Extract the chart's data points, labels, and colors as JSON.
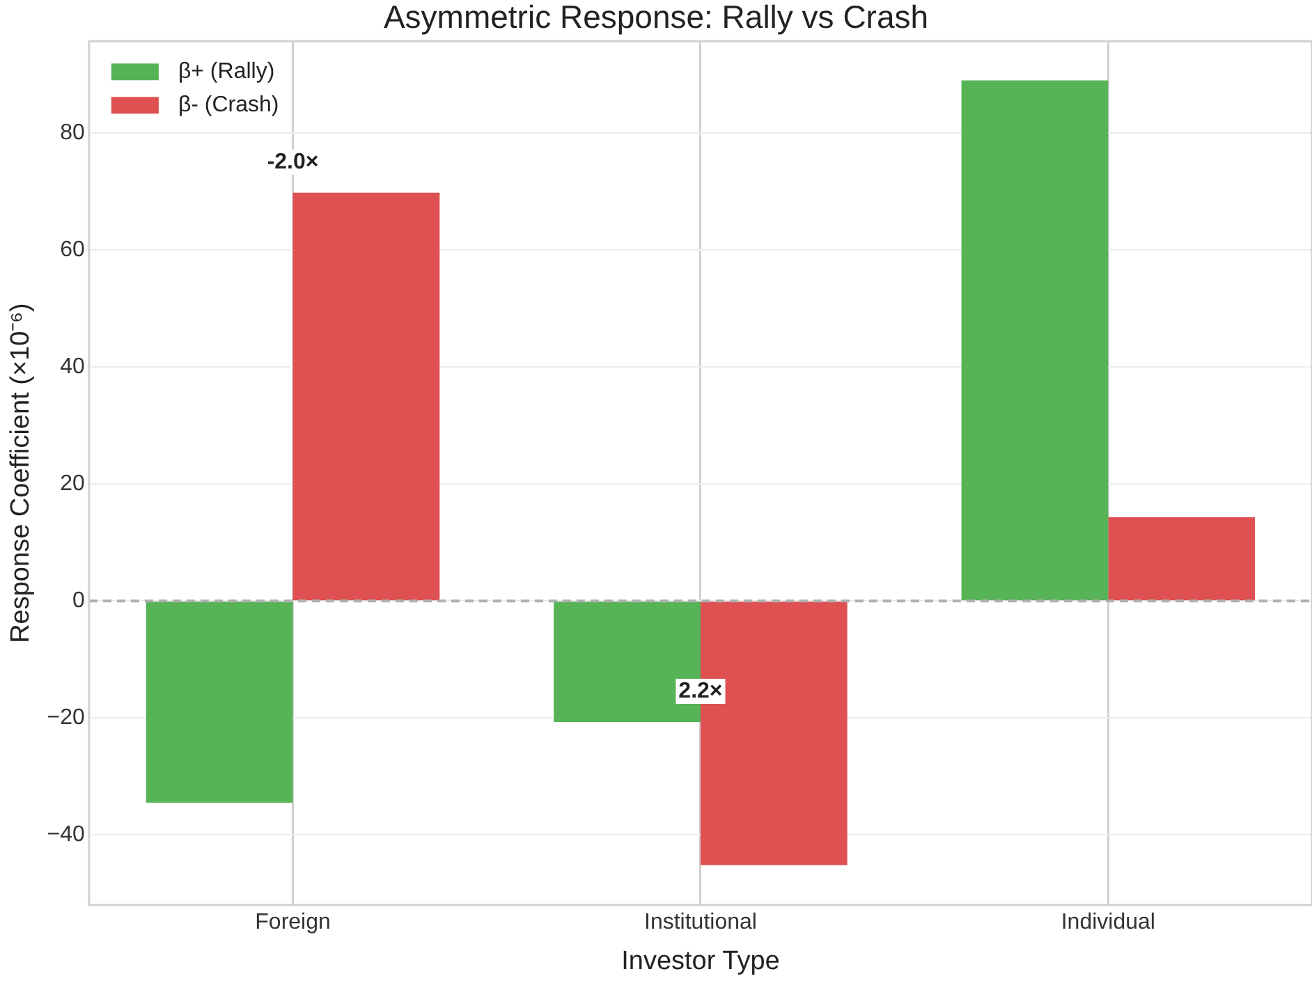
{
  "chart_data": {
    "type": "bar",
    "title": "Asymmetric Response: Rally vs Crash",
    "xlabel": "Investor Type",
    "ylabel": "Response Coefficient (×10⁻⁶)",
    "categories": [
      "Foreign",
      "Institutional",
      "Individual"
    ],
    "series": [
      {
        "name": "β+ (Rally)",
        "color": "#56b356",
        "values": [
          -34.5,
          -20.7,
          89.0
        ]
      },
      {
        "name": "β- (Crash)",
        "color": "#de5051",
        "values": [
          69.8,
          -45.2,
          14.3
        ]
      }
    ],
    "ylim": [
      -52,
      95.7
    ],
    "yticks": [
      -40,
      -20,
      0,
      20,
      40,
      60,
      80
    ],
    "ref_lines": [
      {
        "axis": "y",
        "value": 0,
        "color": "#b0b0b0",
        "line_style": "dashed"
      }
    ],
    "annotations": [
      "-2.0×",
      "2.2×"
    ],
    "grid": true,
    "legend": "top left"
  }
}
